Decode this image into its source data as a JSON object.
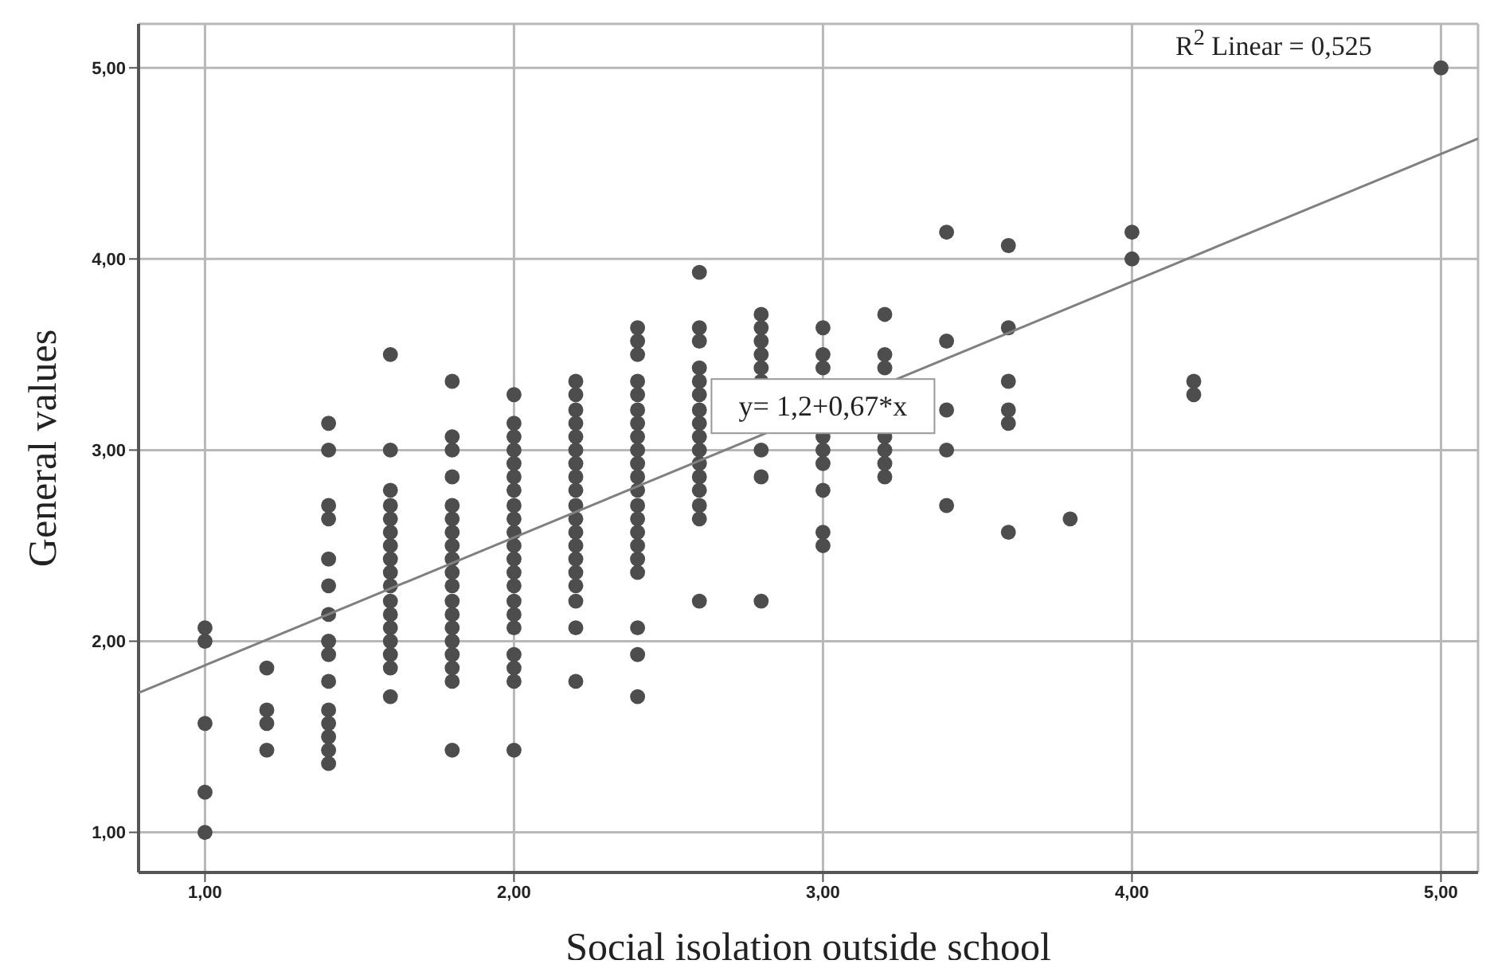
{
  "chart_data": {
    "type": "scatter",
    "xlabel": "Social isolation outside school",
    "ylabel": "General values",
    "xlim": [
      0.785,
      5.12
    ],
    "ylim": [
      0.79,
      5.23
    ],
    "xticks": [
      {
        "value": 1,
        "label": "1,00"
      },
      {
        "value": 2,
        "label": "2,00"
      },
      {
        "value": 3,
        "label": "3,00"
      },
      {
        "value": 4,
        "label": "4,00"
      },
      {
        "value": 5,
        "label": "5,00"
      }
    ],
    "yticks": [
      {
        "value": 1,
        "label": "1,00"
      },
      {
        "value": 2,
        "label": "2,00"
      },
      {
        "value": 3,
        "label": "3,00"
      },
      {
        "value": 4,
        "label": "4,00"
      },
      {
        "value": 5,
        "label": "5,00"
      }
    ],
    "grid": true,
    "series": [
      {
        "marker": "circle",
        "color": "#4d4d4d",
        "x": [
          1.0,
          1.0,
          1.0,
          1.0,
          1.0,
          1.2,
          1.2,
          1.2,
          1.2,
          1.4,
          1.4,
          1.4,
          1.4,
          1.4,
          1.4,
          1.4,
          1.4,
          1.4,
          1.4,
          1.4,
          1.4,
          1.4,
          1.4,
          1.4,
          1.6,
          1.6,
          1.6,
          1.6,
          1.6,
          1.6,
          1.6,
          1.6,
          1.6,
          1.6,
          1.6,
          1.6,
          1.6,
          1.6,
          1.6,
          1.6,
          1.6,
          1.8,
          1.8,
          1.8,
          1.8,
          1.8,
          1.8,
          1.8,
          1.8,
          1.8,
          1.8,
          1.8,
          1.8,
          1.8,
          1.8,
          1.8,
          1.8,
          1.8,
          1.8,
          1.8,
          2.0,
          2.0,
          2.0,
          2.0,
          2.0,
          2.0,
          2.0,
          2.0,
          2.0,
          2.0,
          2.0,
          2.0,
          2.0,
          2.0,
          2.0,
          2.0,
          2.0,
          2.0,
          2.0,
          2.0,
          2.0,
          2.2,
          2.2,
          2.2,
          2.2,
          2.2,
          2.2,
          2.2,
          2.2,
          2.2,
          2.2,
          2.2,
          2.2,
          2.2,
          2.2,
          2.2,
          2.2,
          2.2,
          2.2,
          2.2,
          2.4,
          2.4,
          2.4,
          2.4,
          2.4,
          2.4,
          2.4,
          2.4,
          2.4,
          2.4,
          2.4,
          2.4,
          2.4,
          2.4,
          2.4,
          2.4,
          2.4,
          2.4,
          2.4,
          2.4,
          2.4,
          2.6,
          2.6,
          2.6,
          2.6,
          2.6,
          2.6,
          2.6,
          2.6,
          2.6,
          2.6,
          2.6,
          2.6,
          2.6,
          2.6,
          2.6,
          2.6,
          2.8,
          2.8,
          2.8,
          2.8,
          2.8,
          2.8,
          2.8,
          2.8,
          2.8,
          3.0,
          3.0,
          3.0,
          3.0,
          3.0,
          3.0,
          3.0,
          3.0,
          3.0,
          3.2,
          3.2,
          3.2,
          3.2,
          3.2,
          3.2,
          3.2,
          3.4,
          3.4,
          3.4,
          3.4,
          3.4,
          3.6,
          3.6,
          3.6,
          3.6,
          3.6,
          3.6,
          3.8,
          4.0,
          4.0,
          4.2,
          4.2,
          5.0
        ],
        "values": [
          2.07,
          2.0,
          1.57,
          1.21,
          1.0,
          1.86,
          1.64,
          1.57,
          1.43,
          3.14,
          3.0,
          2.71,
          2.64,
          2.43,
          2.29,
          2.14,
          2.0,
          1.93,
          1.79,
          1.64,
          1.57,
          1.5,
          1.43,
          1.36,
          3.5,
          3.0,
          2.79,
          2.71,
          2.64,
          2.57,
          2.5,
          2.43,
          2.36,
          2.29,
          2.21,
          2.14,
          2.07,
          2.0,
          1.93,
          1.86,
          1.71,
          3.36,
          3.07,
          3.0,
          2.86,
          2.71,
          2.64,
          2.57,
          2.5,
          2.43,
          2.36,
          2.29,
          2.21,
          2.14,
          2.07,
          2.0,
          1.93,
          1.86,
          1.79,
          1.43,
          3.29,
          3.14,
          3.07,
          3.0,
          2.93,
          2.86,
          2.79,
          2.71,
          2.64,
          2.57,
          2.5,
          2.43,
          2.36,
          2.29,
          2.21,
          2.14,
          2.07,
          1.93,
          1.86,
          1.79,
          1.43,
          3.36,
          3.29,
          3.21,
          3.14,
          3.07,
          3.0,
          2.93,
          2.86,
          2.79,
          2.71,
          2.64,
          2.57,
          2.5,
          2.43,
          2.36,
          2.29,
          2.21,
          2.07,
          1.79,
          3.64,
          3.57,
          3.5,
          3.36,
          3.29,
          3.21,
          3.14,
          3.07,
          3.0,
          2.93,
          2.86,
          2.79,
          2.71,
          2.64,
          2.57,
          2.5,
          2.43,
          2.36,
          2.07,
          1.93,
          1.71,
          3.93,
          3.64,
          3.57,
          3.43,
          3.36,
          3.29,
          3.21,
          3.14,
          3.07,
          3.0,
          2.93,
          2.86,
          2.79,
          2.71,
          2.64,
          2.21,
          3.71,
          3.64,
          3.57,
          3.5,
          3.43,
          3.36,
          3.0,
          2.86,
          2.21,
          3.64,
          3.5,
          3.43,
          3.07,
          3.0,
          2.93,
          2.79,
          2.57,
          2.5,
          3.71,
          3.5,
          3.43,
          3.07,
          3.0,
          2.93,
          2.86,
          4.14,
          3.57,
          3.21,
          3.0,
          2.71,
          4.07,
          3.64,
          3.36,
          3.21,
          3.14,
          2.57,
          2.64,
          4.14,
          4.0,
          3.36,
          3.29,
          5.0
        ]
      },
      {
        "type": "line",
        "marker": "none",
        "color": "#808080",
        "x": [
          0.785,
          5.12
        ],
        "values": [
          1.73,
          4.63
        ]
      }
    ],
    "annotations": [
      {
        "text": "y= 1,2+0,67*x",
        "x": 3.0,
        "y": 3.23
      },
      "R$^{2}$ Linear = 0,525"
    ]
  }
}
